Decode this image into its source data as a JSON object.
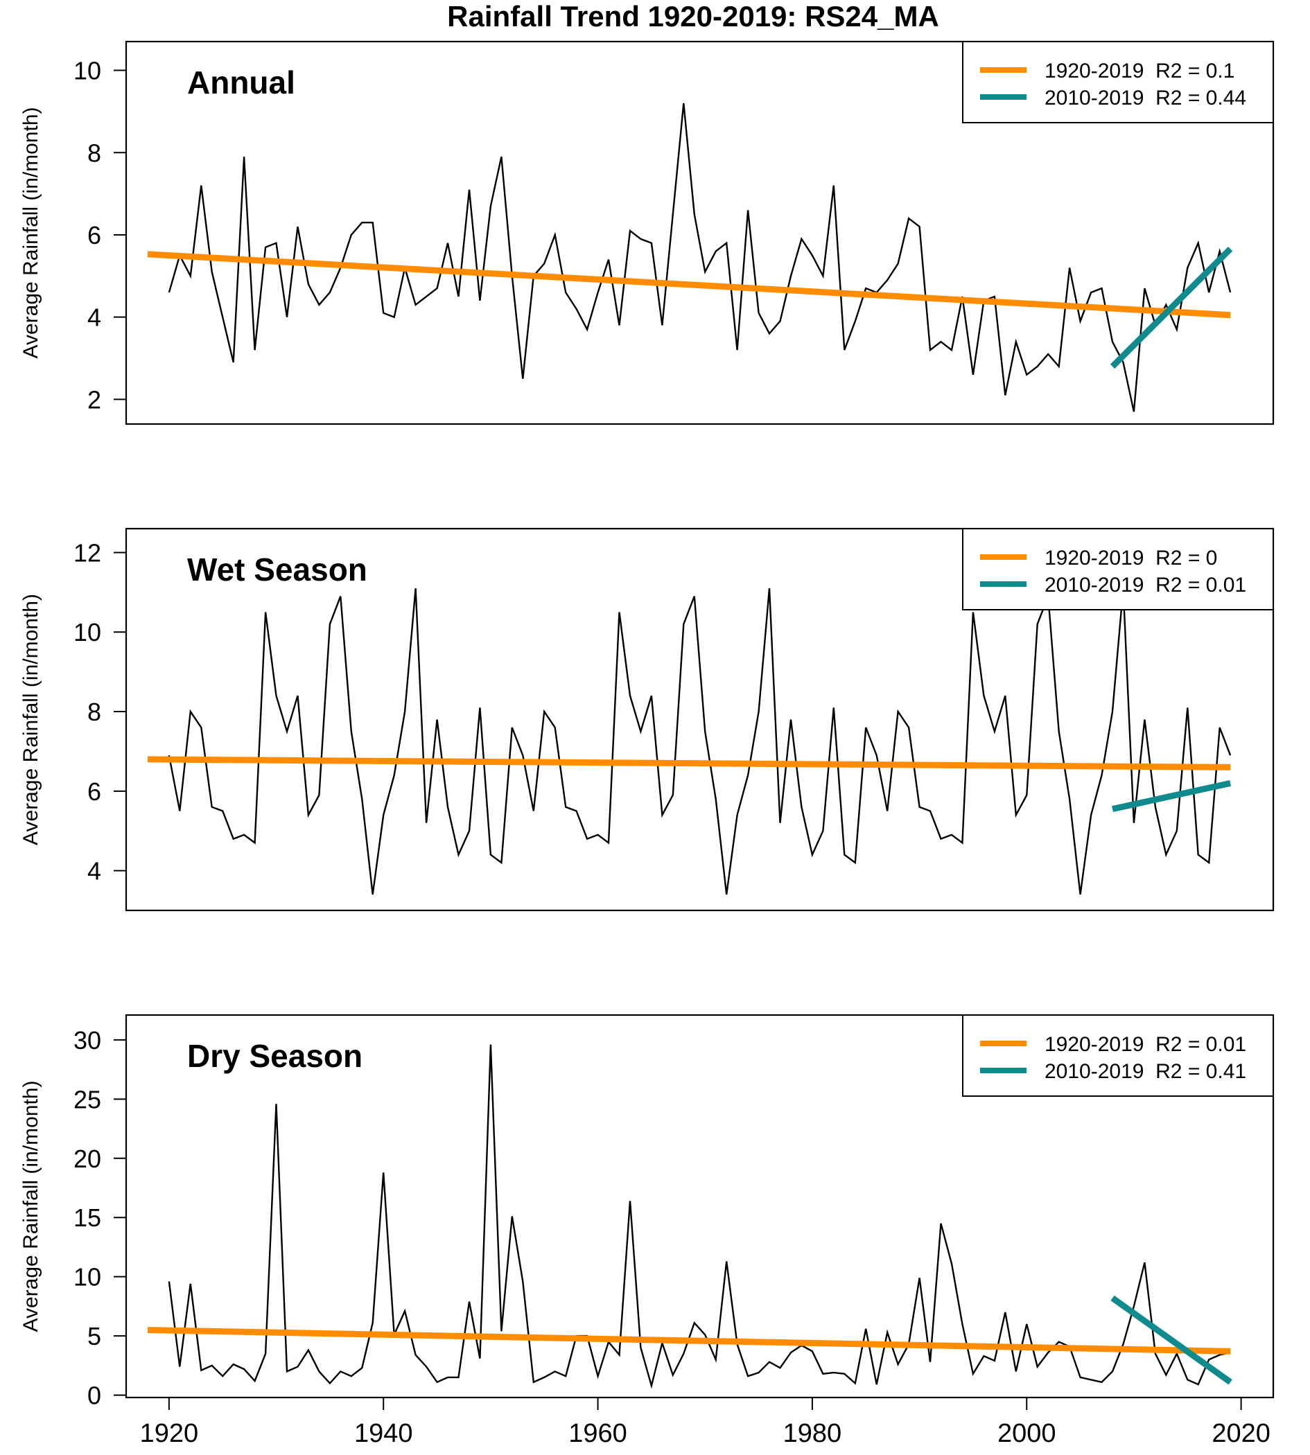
{
  "chart_data": {
    "title": "Rainfall Trend 1920-2019: RS24_MA",
    "x_ticks": [
      1920,
      1940,
      1960,
      1980,
      2000,
      2020
    ],
    "xlim": [
      1916,
      2023
    ],
    "legend_position": "top-right",
    "grid": false,
    "panels": [
      {
        "type": "line",
        "title": "Annual",
        "ylabel": "Average Rainfall (in/month)",
        "ylim": [
          1.4,
          10.7
        ],
        "y_ticks": [
          2,
          4,
          6,
          8,
          10
        ],
        "x": [
          1920,
          1921,
          1922,
          1923,
          1924,
          1925,
          1926,
          1927,
          1928,
          1929,
          1930,
          1931,
          1932,
          1933,
          1934,
          1935,
          1936,
          1937,
          1938,
          1939,
          1940,
          1941,
          1942,
          1943,
          1944,
          1945,
          1946,
          1947,
          1948,
          1949,
          1950,
          1951,
          1952,
          1953,
          1954,
          1955,
          1956,
          1957,
          1958,
          1959,
          1960,
          1961,
          1962,
          1963,
          1964,
          1965,
          1966,
          1967,
          1968,
          1969,
          1970,
          1971,
          1972,
          1973,
          1974,
          1975,
          1976,
          1977,
          1978,
          1979,
          1980,
          1981,
          1982,
          1983,
          1984,
          1985,
          1986,
          1987,
          1988,
          1989,
          1990,
          1991,
          1992,
          1993,
          1994,
          1995,
          1996,
          1997,
          1998,
          1999,
          2000,
          2001,
          2002,
          2003,
          2004,
          2005,
          2006,
          2007,
          2008,
          2009,
          2010,
          2011,
          2012,
          2013,
          2014,
          2015,
          2016,
          2017,
          2018,
          2019
        ],
        "values": [
          4.6,
          5.5,
          5.0,
          7.2,
          5.1,
          4.0,
          2.9,
          7.9,
          3.2,
          5.7,
          5.8,
          4.0,
          6.2,
          4.8,
          4.3,
          4.6,
          5.2,
          6.0,
          6.3,
          6.3,
          4.1,
          4.0,
          5.2,
          4.3,
          4.5,
          4.7,
          5.8,
          4.5,
          7.1,
          4.4,
          6.7,
          7.9,
          5.0,
          2.5,
          5.0,
          5.3,
          6.0,
          4.6,
          4.2,
          3.7,
          4.6,
          5.4,
          3.8,
          6.1,
          5.9,
          5.8,
          3.8,
          6.5,
          9.2,
          6.5,
          5.1,
          5.6,
          5.8,
          3.2,
          6.6,
          4.1,
          3.6,
          3.9,
          5.0,
          5.9,
          5.5,
          5.0,
          7.2,
          3.2,
          3.9,
          4.7,
          4.6,
          4.9,
          5.3,
          6.4,
          6.2,
          3.2,
          3.4,
          3.2,
          4.5,
          2.6,
          4.4,
          4.5,
          2.1,
          3.4,
          2.6,
          2.8,
          3.1,
          2.8,
          5.2,
          3.9,
          4.6,
          4.7,
          3.4,
          2.9,
          1.7,
          4.7,
          3.8,
          4.3,
          3.7,
          5.2,
          5.8,
          4.6,
          5.6,
          4.6
        ],
        "trends": [
          {
            "name": "1920-2019  R2 = 0.1",
            "color": "#ff8c00",
            "x": [
              1918,
              2019
            ],
            "y": [
              5.53,
              4.05
            ]
          },
          {
            "name": "2010-2019  R2 = 0.44",
            "color": "#0f8b8d",
            "x": [
              2008,
              2019
            ],
            "y": [
              2.8,
              5.66
            ]
          }
        ]
      },
      {
        "type": "line",
        "title": "Wet Season",
        "ylabel": "Average Rainfall (in/month)",
        "ylim": [
          3.0,
          12.6
        ],
        "y_ticks": [
          4,
          6,
          8,
          10,
          12
        ],
        "x": [
          1920,
          1921,
          1922,
          1923,
          1924,
          1925,
          1926,
          1927,
          1928,
          1929,
          1930,
          1931,
          1932,
          1933,
          1934,
          1935,
          1936,
          1937,
          1938,
          1939,
          1940,
          1941,
          1942,
          1943,
          1944,
          1945,
          1946,
          1947,
          1948,
          1949,
          1950,
          1951,
          1952,
          1953,
          1954,
          1955,
          1956,
          1957,
          1958,
          1959,
          1960,
          1961,
          1962,
          1963,
          1964,
          1965,
          1966,
          1967,
          1968,
          1969,
          1970,
          1971,
          1972,
          1973,
          1974,
          1975,
          1976,
          1977,
          1978,
          1979,
          1980,
          1981,
          1982,
          1983,
          1984,
          1985,
          1986,
          1987,
          1988,
          1989,
          1990,
          1991,
          1992,
          1993,
          1994,
          1995,
          1996,
          1997,
          1998,
          1999,
          2000,
          2001,
          2002,
          2003,
          2004,
          2005,
          2006,
          2007,
          2008,
          2009,
          2010,
          2011,
          2012,
          2013,
          2014,
          2015,
          2016,
          2017,
          2018,
          2019
        ],
        "values": [
          6.9,
          5.5,
          8.0,
          7.6,
          5.6,
          5.5,
          4.8,
          4.9,
          4.7,
          10.5,
          8.4,
          7.5,
          8.4,
          5.4,
          5.9,
          10.2,
          10.9,
          7.5,
          5.8,
          3.4,
          5.4,
          6.4,
          8.0,
          11.1,
          5.2,
          7.8,
          5.6,
          4.4,
          5.0,
          8.1,
          4.4,
          4.2,
          7.6,
          6.9,
          5.5,
          8.0,
          7.6,
          5.6,
          5.5,
          4.8,
          4.9,
          4.7,
          10.5,
          8.4,
          7.5,
          8.4,
          5.4,
          5.9,
          10.2,
          10.9,
          7.5,
          5.8,
          3.4,
          5.4,
          6.4,
          8.0,
          11.1,
          5.2,
          7.8,
          5.6,
          4.4,
          5.0,
          8.1,
          4.4,
          4.2,
          7.6,
          6.9,
          5.5,
          8.0,
          7.6,
          5.6,
          5.5,
          4.8,
          4.9,
          4.7,
          10.5,
          8.4,
          7.5,
          8.4,
          5.4,
          5.9,
          10.2,
          10.9,
          7.5,
          5.8,
          3.4,
          5.4,
          6.4,
          8.0,
          11.1,
          5.2,
          7.8,
          5.6,
          4.4,
          5.0,
          8.1,
          4.4,
          4.2,
          7.6,
          6.9
        ],
        "trends": [
          {
            "name": "1920-2019  R2 = 0",
            "color": "#ff8c00",
            "x": [
              1918,
              2019
            ],
            "y": [
              6.8,
              6.6
            ]
          },
          {
            "name": "2010-2019  R2 = 0.01",
            "color": "#0f8b8d",
            "x": [
              2008,
              2019
            ],
            "y": [
              5.55,
              6.2
            ]
          }
        ]
      },
      {
        "type": "line",
        "title": "Dry Season",
        "ylabel": "Average Rainfall (in/month)",
        "ylim": [
          -0.2,
          32.1
        ],
        "y_ticks": [
          0,
          5,
          10,
          15,
          20,
          25,
          30
        ],
        "x": [
          1920,
          1921,
          1922,
          1923,
          1924,
          1925,
          1926,
          1927,
          1928,
          1929,
          1930,
          1931,
          1932,
          1933,
          1934,
          1935,
          1936,
          1937,
          1938,
          1939,
          1940,
          1941,
          1942,
          1943,
          1944,
          1945,
          1946,
          1947,
          1948,
          1949,
          1950,
          1951,
          1952,
          1953,
          1954,
          1955,
          1956,
          1957,
          1958,
          1959,
          1960,
          1961,
          1962,
          1963,
          1964,
          1965,
          1966,
          1967,
          1968,
          1969,
          1970,
          1971,
          1972,
          1973,
          1974,
          1975,
          1976,
          1977,
          1978,
          1979,
          1980,
          1981,
          1982,
          1983,
          1984,
          1985,
          1986,
          1987,
          1988,
          1989,
          1990,
          1991,
          1992,
          1993,
          1994,
          1995,
          1996,
          1997,
          1998,
          1999,
          2000,
          2001,
          2002,
          2003,
          2004,
          2005,
          2006,
          2007,
          2008,
          2009,
          2010,
          2011,
          2012,
          2013,
          2014,
          2015,
          2016,
          2017,
          2018,
          2019
        ],
        "values": [
          9.6,
          2.4,
          9.4,
          2.1,
          2.5,
          1.6,
          2.6,
          2.2,
          1.2,
          3.5,
          24.6,
          2.0,
          2.4,
          3.8,
          2.0,
          1.0,
          2.0,
          1.6,
          2.3,
          6.1,
          18.8,
          5.1,
          7.1,
          3.4,
          2.4,
          1.1,
          1.5,
          1.5,
          7.9,
          3.1,
          29.6,
          5.4,
          15.1,
          9.6,
          1.1,
          1.5,
          2.0,
          1.6,
          5.0,
          5.0,
          1.6,
          4.5,
          3.4,
          16.4,
          4.0,
          0.8,
          4.4,
          1.7,
          3.5,
          6.1,
          5.1,
          3.0,
          11.3,
          4.3,
          1.6,
          1.9,
          2.8,
          2.3,
          3.6,
          4.2,
          3.7,
          1.8,
          1.9,
          1.8,
          1.0,
          5.6,
          0.9,
          5.3,
          2.6,
          4.3,
          9.9,
          2.8,
          14.5,
          11.1,
          6.0,
          1.8,
          3.3,
          2.9,
          7.0,
          2.0,
          6.0,
          2.4,
          3.6,
          4.5,
          4.1,
          1.5,
          1.3,
          1.1,
          2.0,
          4.3,
          7.5,
          11.2,
          3.5,
          1.7,
          3.5,
          1.3,
          0.9,
          3.0,
          3.4,
          3.6
        ],
        "trends": [
          {
            "name": "1920-2019  R2 = 0.01",
            "color": "#ff8c00",
            "x": [
              1918,
              2019
            ],
            "y": [
              5.5,
              3.7
            ]
          },
          {
            "name": "2010-2019  R2 = 0.41",
            "color": "#0f8b8d",
            "x": [
              2008,
              2019
            ],
            "y": [
              8.2,
              1.1
            ]
          }
        ]
      }
    ]
  }
}
